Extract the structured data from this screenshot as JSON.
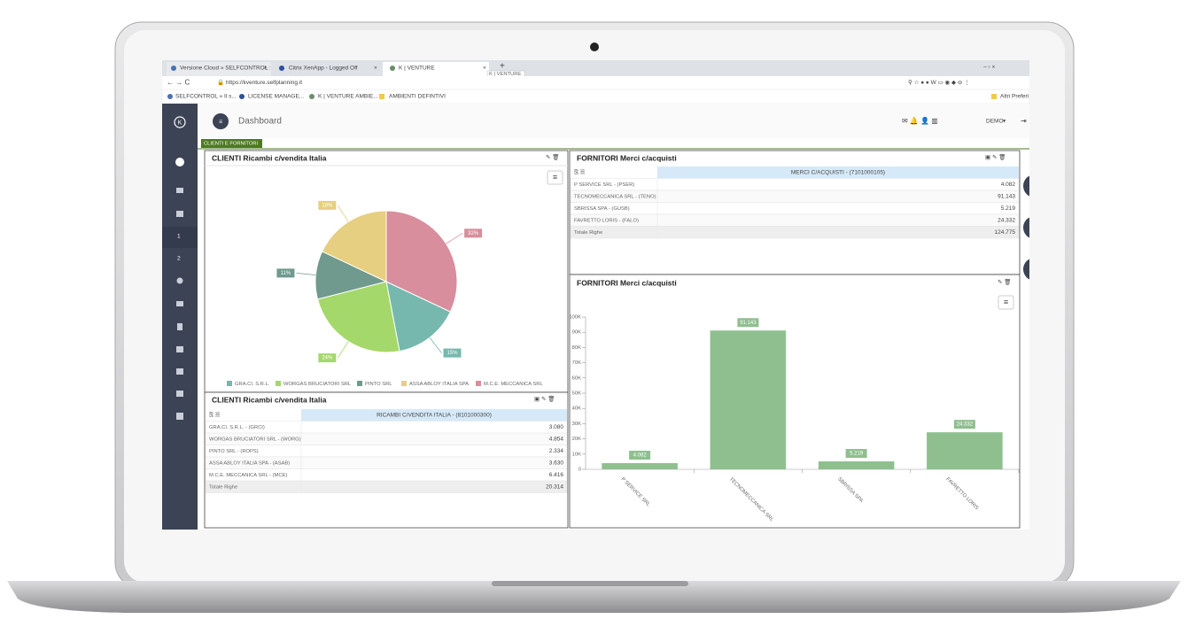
{
  "browser": {
    "tabs": [
      "Versione Cloud » SELFCONTROL :",
      "Citrix XenApp - Logged Off",
      "K | VENTURE"
    ],
    "tooltip": "K | VENTURE",
    "url": "https://kventure.selfplanning.it",
    "bookmarks": [
      "SELFCONTROL » Il s...",
      "LICENSE MANAGE...",
      "K | VENTURE AMBIE...",
      "AMBIENTI DEFINTIVI"
    ],
    "other_bookmarks": "Altri Preferi"
  },
  "app": {
    "title": "Dashboard",
    "user": "DEMO",
    "tab": "CLIENTI E FORNITORI",
    "sidebar_items": [
      "1",
      "2"
    ]
  },
  "panels": {
    "clienti_chart": "CLIENTI Ricambi c/vendita Italia",
    "clienti_table": "CLIENTI Ricambi c/vendita Italia",
    "fornitori_table": "FORNITORI Merci c/acquisti",
    "fornitori_chart": "FORNITORI Merci c/acquisti"
  },
  "tables": {
    "clienti": {
      "header": "RICAMBI C/VENDITA ITALIA - (8101000300)",
      "rows": [
        [
          "GRA.CI. S.R.L. - (GRCI)",
          "3.080"
        ],
        [
          "WORGAS BRUCIATORI SRL - (WORG)",
          "4.854"
        ],
        [
          "PINTO SRL - (ROPS)",
          "2.334"
        ],
        [
          "ASSA ABLOY ITALIA SPA - (ASAB)",
          "3.630"
        ],
        [
          "M.C.E. MECCANICA SRL - (MCE)",
          "6.416"
        ]
      ],
      "total": [
        "Totale Righe",
        "20.314"
      ]
    },
    "fornitori": {
      "header": "MERCI C/ACQUISTI - (7101000105)",
      "rows": [
        [
          "P SERVICE SRL - (PSER)",
          "4.082"
        ],
        [
          "TECNOMECCANICA SRL - (TENO)",
          "91.143"
        ],
        [
          "SBRISSA SPA - (GUSB)",
          "5.219"
        ],
        [
          "FAVRETTO LORIS - (FALO)",
          "24.332"
        ]
      ],
      "total": [
        "Totale Righe",
        "124.775"
      ]
    }
  },
  "chart_data": [
    {
      "type": "pie",
      "categories": [
        "GRA.CI. S.R.L.",
        "WORGAS BRUCIATORI SRL",
        "PINTO SRL",
        "ASSA ABLOY ITALIA SPA",
        "M.C.E. MECCANICA SRL"
      ],
      "values": [
        15,
        24,
        11,
        18,
        32
      ],
      "value_labels": [
        "15%",
        "24%",
        "11%",
        "18%",
        "32%"
      ],
      "colors": [
        "#76b8ae",
        "#a5d86a",
        "#6f9a8d",
        "#e6cf80",
        "#d88e9c"
      ],
      "legend": "bottom"
    },
    {
      "type": "bar",
      "categories": [
        "P SERVICE SRL",
        "TECNOMECCANICA SRL",
        "SBRISSA SPA",
        "FAVRETTO LORIS"
      ],
      "values": [
        4082,
        91143,
        5219,
        24332
      ],
      "value_labels": [
        "4.082",
        "91.143",
        "5.219",
        "24.332"
      ],
      "color": "#8fbf8f",
      "ylim": [
        0,
        100000
      ],
      "yticks": [
        0,
        {
          "value": 10000,
          "label": "10K"
        },
        {
          "value": 20000,
          "label": "20K"
        },
        {
          "value": 30000,
          "label": "30K"
        },
        {
          "value": 40000,
          "label": "40K"
        },
        {
          "value": 50000,
          "label": "50K"
        },
        {
          "value": 60000,
          "label": "60K"
        },
        {
          "value": 70000,
          "label": "70K"
        },
        {
          "value": 80000,
          "label": "80K"
        },
        {
          "value": 90000,
          "label": "90K"
        },
        {
          "value": 100000,
          "label": "100K"
        }
      ],
      "grid": false
    }
  ]
}
